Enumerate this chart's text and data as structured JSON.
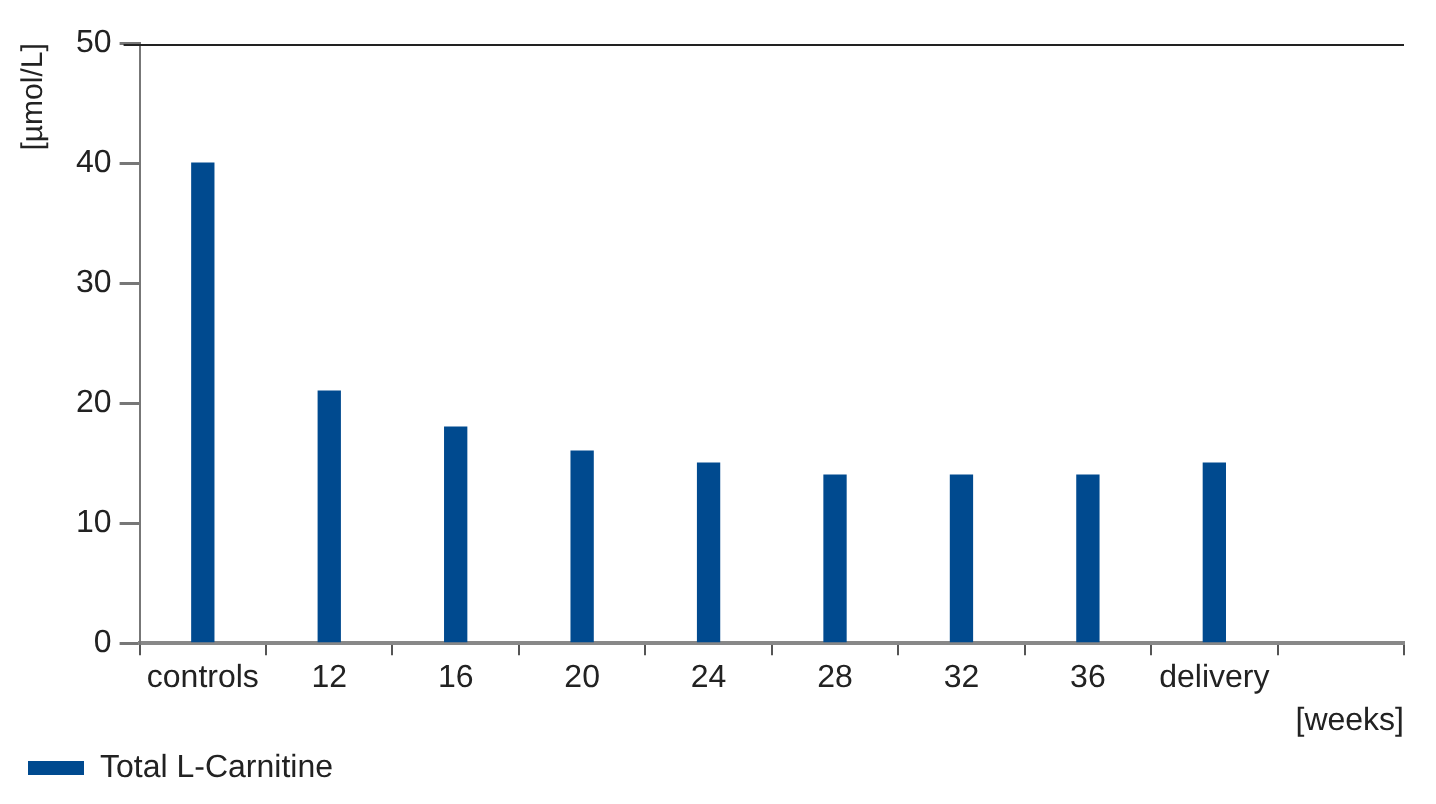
{
  "chart_data": {
    "type": "bar",
    "xlabel": "[weeks]",
    "ylabel": "[µmol/L]",
    "categories": [
      "controls",
      "12",
      "16",
      "20",
      "24",
      "28",
      "32",
      "36",
      "delivery",
      null
    ],
    "series": [
      {
        "name": "Total L-Carnitine",
        "color": "#004a8f",
        "values": [
          40,
          21,
          18,
          16,
          15,
          14,
          14,
          14,
          15,
          null
        ]
      }
    ],
    "ylim": [
      0,
      50
    ],
    "yticks": [
      0,
      10,
      20,
      30,
      40,
      50
    ],
    "grid": false,
    "ref_lines": [
      {
        "axis": "y",
        "value": 50,
        "color": "#222222"
      }
    ],
    "legend": "bottom left"
  }
}
